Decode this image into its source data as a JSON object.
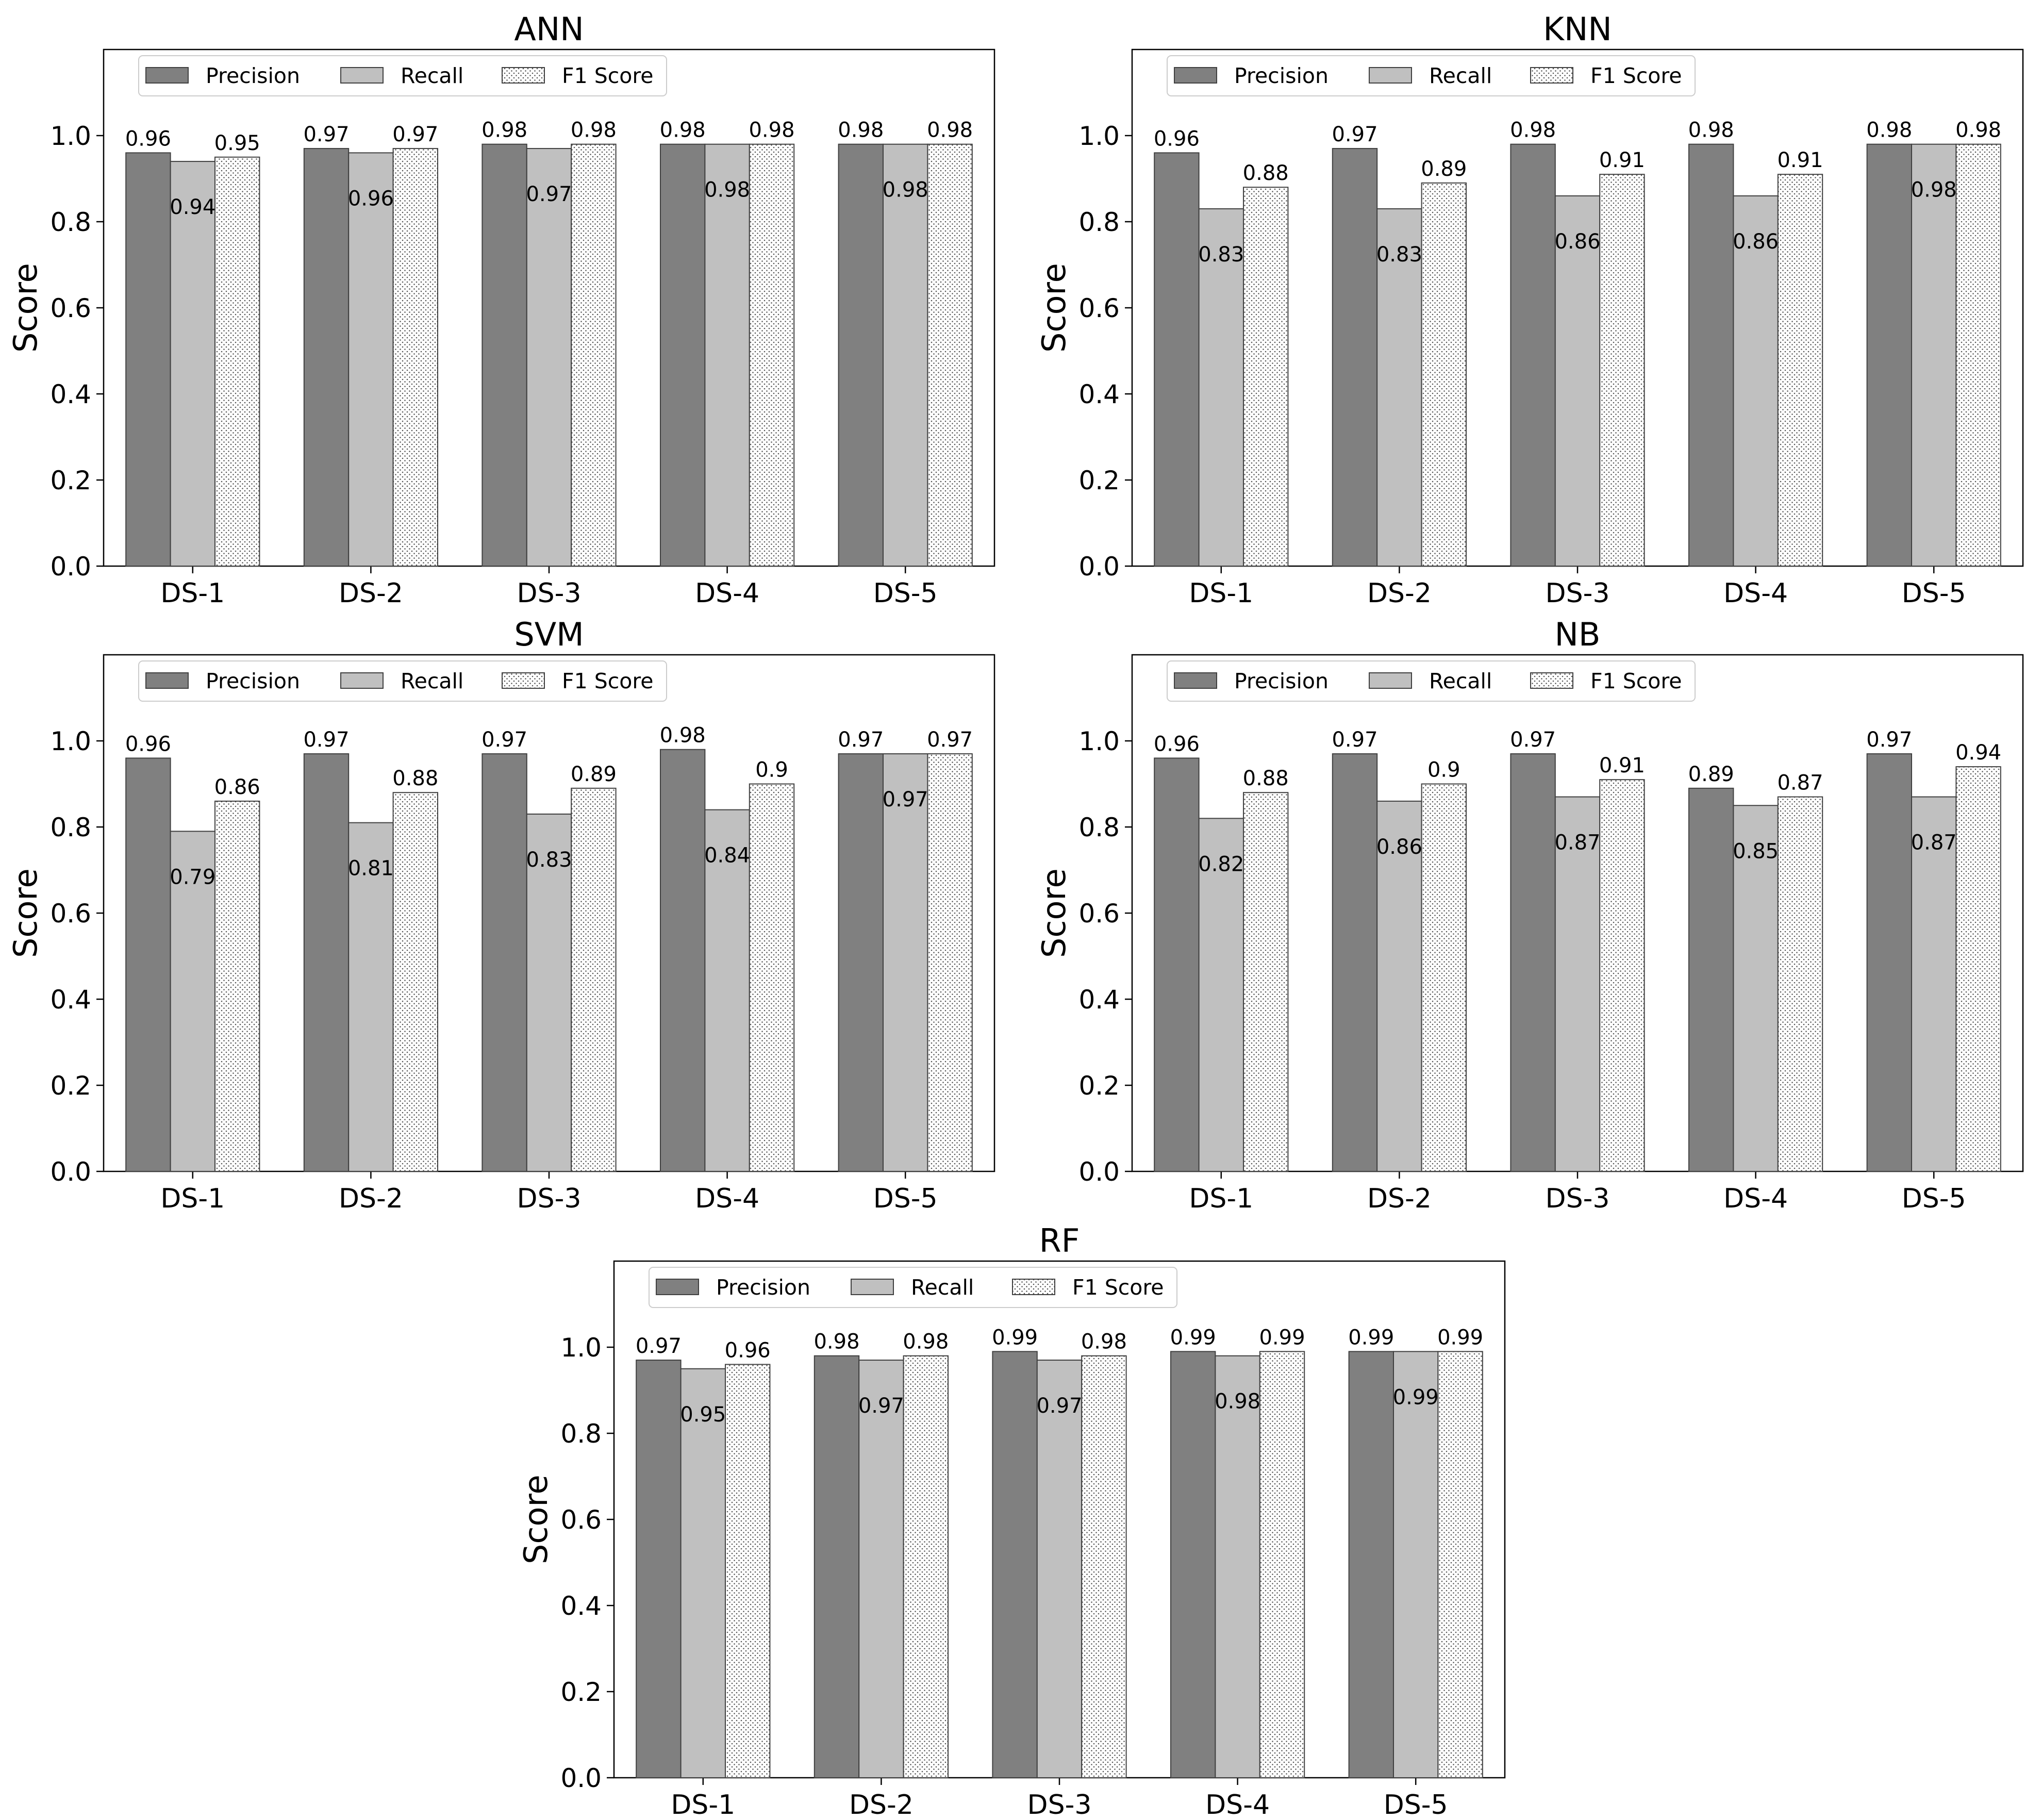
{
  "legend": {
    "precision": "Precision",
    "recall": "Recall",
    "f1": "F1 Score"
  },
  "style": {
    "precision_color": "#808080",
    "recall_color": "#c0c0c0",
    "f1_color": "#ffffff",
    "edge_color": "#404040"
  },
  "chart_data": [
    {
      "type": "bar",
      "title": "ANN",
      "xlabel": "",
      "ylabel": "Score",
      "ylim": [
        0,
        1.2
      ],
      "yticks": [
        "0.0",
        "0.2",
        "0.4",
        "0.6",
        "0.8",
        "1.0"
      ],
      "legend_position": "top-left",
      "categories": [
        "DS-1",
        "DS-2",
        "DS-3",
        "DS-4",
        "DS-5"
      ],
      "series": [
        {
          "name": "Precision",
          "values": [
            0.96,
            0.97,
            0.98,
            0.98,
            0.98
          ],
          "labels": [
            "0.96",
            "0.97",
            "0.98",
            "0.98",
            "0.98"
          ]
        },
        {
          "name": "Recall",
          "values": [
            0.94,
            0.96,
            0.97,
            0.98,
            0.98
          ],
          "labels": [
            "0.94",
            "0.96",
            "0.97",
            "0.98",
            "0.98"
          ]
        },
        {
          "name": "F1 Score",
          "values": [
            0.95,
            0.97,
            0.98,
            0.98,
            0.98
          ],
          "labels": [
            "0.95",
            "0.97",
            "0.98",
            "0.98",
            "0.98"
          ]
        }
      ]
    },
    {
      "type": "bar",
      "title": "KNN",
      "xlabel": "",
      "ylabel": "Score",
      "ylim": [
        0,
        1.2
      ],
      "yticks": [
        "0.0",
        "0.2",
        "0.4",
        "0.6",
        "0.8",
        "1.0"
      ],
      "legend_position": "top-left",
      "categories": [
        "DS-1",
        "DS-2",
        "DS-3",
        "DS-4",
        "DS-5"
      ],
      "series": [
        {
          "name": "Precision",
          "values": [
            0.96,
            0.97,
            0.98,
            0.98,
            0.98
          ],
          "labels": [
            "0.96",
            "0.97",
            "0.98",
            "0.98",
            "0.98"
          ]
        },
        {
          "name": "Recall",
          "values": [
            0.83,
            0.83,
            0.86,
            0.86,
            0.98
          ],
          "labels": [
            "0.83",
            "0.83",
            "0.86",
            "0.86",
            "0.98"
          ]
        },
        {
          "name": "F1 Score",
          "values": [
            0.88,
            0.89,
            0.91,
            0.91,
            0.98
          ],
          "labels": [
            "0.88",
            "0.89",
            "0.91",
            "0.91",
            "0.98"
          ]
        }
      ]
    },
    {
      "type": "bar",
      "title": "SVM",
      "xlabel": "",
      "ylabel": "Score",
      "ylim": [
        0,
        1.2
      ],
      "yticks": [
        "0.0",
        "0.2",
        "0.4",
        "0.6",
        "0.8",
        "1.0"
      ],
      "legend_position": "top-left",
      "categories": [
        "DS-1",
        "DS-2",
        "DS-3",
        "DS-4",
        "DS-5"
      ],
      "series": [
        {
          "name": "Precision",
          "values": [
            0.96,
            0.97,
            0.97,
            0.98,
            0.97
          ],
          "labels": [
            "0.96",
            "0.97",
            "0.97",
            "0.98",
            "0.97"
          ]
        },
        {
          "name": "Recall",
          "values": [
            0.79,
            0.81,
            0.83,
            0.84,
            0.97
          ],
          "labels": [
            "0.79",
            "0.81",
            "0.83",
            "0.84",
            "0.97"
          ]
        },
        {
          "name": "F1 Score",
          "values": [
            0.86,
            0.88,
            0.89,
            0.9,
            0.97
          ],
          "labels": [
            "0.86",
            "0.88",
            "0.89",
            "0.9",
            "0.97"
          ]
        }
      ]
    },
    {
      "type": "bar",
      "title": "NB",
      "xlabel": "",
      "ylabel": "Score",
      "ylim": [
        0,
        1.2
      ],
      "yticks": [
        "0.0",
        "0.2",
        "0.4",
        "0.6",
        "0.8",
        "1.0"
      ],
      "legend_position": "top-left",
      "categories": [
        "DS-1",
        "DS-2",
        "DS-3",
        "DS-4",
        "DS-5"
      ],
      "series": [
        {
          "name": "Precision",
          "values": [
            0.96,
            0.97,
            0.97,
            0.89,
            0.97
          ],
          "labels": [
            "0.96",
            "0.97",
            "0.97",
            "0.89",
            "0.97"
          ]
        },
        {
          "name": "Recall",
          "values": [
            0.82,
            0.86,
            0.87,
            0.85,
            0.87
          ],
          "labels": [
            "0.82",
            "0.86",
            "0.87",
            "0.85",
            "0.87"
          ]
        },
        {
          "name": "F1 Score",
          "values": [
            0.88,
            0.9,
            0.91,
            0.87,
            0.94
          ],
          "labels": [
            "0.88",
            "0.9",
            "0.91",
            "0.87",
            "0.94"
          ]
        }
      ]
    },
    {
      "type": "bar",
      "title": "RF",
      "xlabel": "",
      "ylabel": "Score",
      "ylim": [
        0,
        1.2
      ],
      "yticks": [
        "0.0",
        "0.2",
        "0.4",
        "0.6",
        "0.8",
        "1.0"
      ],
      "legend_position": "top-left",
      "categories": [
        "DS-1",
        "DS-2",
        "DS-3",
        "DS-4",
        "DS-5"
      ],
      "series": [
        {
          "name": "Precision",
          "values": [
            0.97,
            0.98,
            0.99,
            0.99,
            0.99
          ],
          "labels": [
            "0.97",
            "0.98",
            "0.99",
            "0.99",
            "0.99"
          ]
        },
        {
          "name": "Recall",
          "values": [
            0.95,
            0.97,
            0.97,
            0.98,
            0.99
          ],
          "labels": [
            "0.95",
            "0.97",
            "0.97",
            "0.98",
            "0.99"
          ]
        },
        {
          "name": "F1 Score",
          "values": [
            0.96,
            0.98,
            0.98,
            0.99,
            0.99
          ],
          "labels": [
            "0.96",
            "0.98",
            "0.98",
            "0.99",
            "0.99"
          ]
        }
      ]
    }
  ]
}
